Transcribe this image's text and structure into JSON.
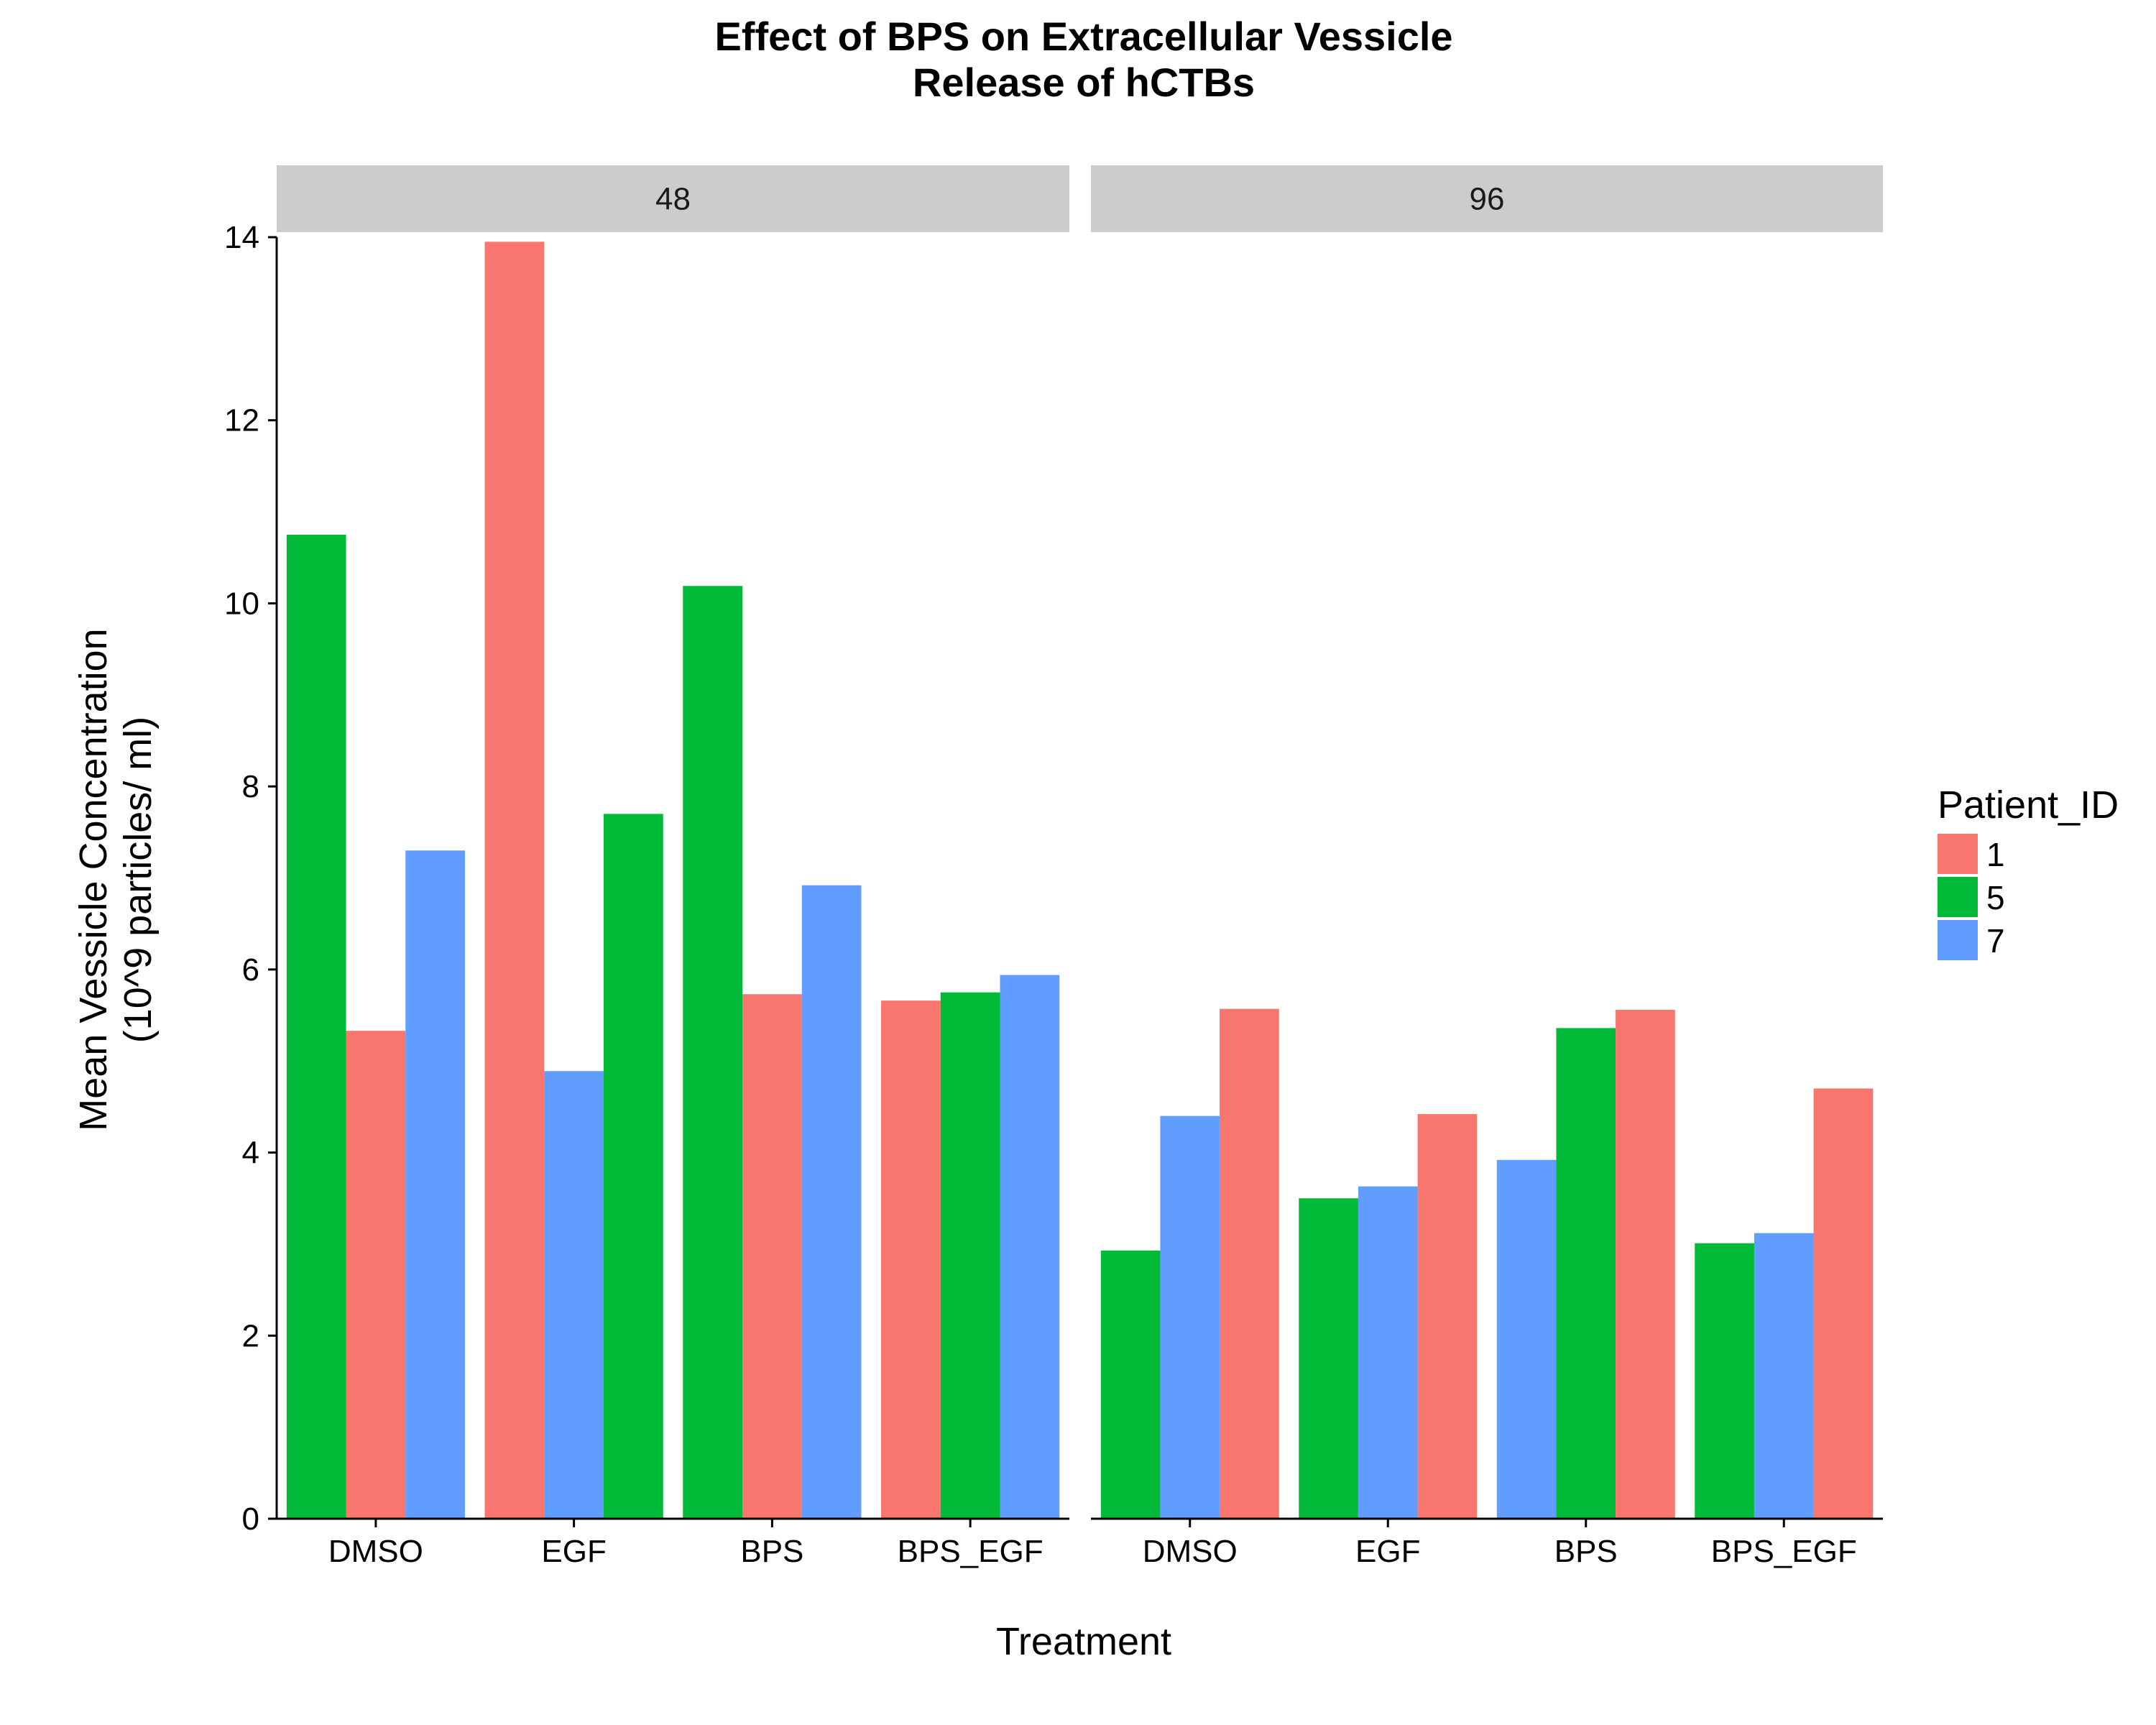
{
  "chart_data": {
    "type": "bar",
    "title_lines": [
      "Effect of BPS on Extracellular Vessicle",
      "Release of hCTBs"
    ],
    "xlabel": "Treatment",
    "ylabel_lines": [
      "Mean Vessicle Concentration",
      "(10^9 particles/ ml)"
    ],
    "ylim": [
      0,
      14
    ],
    "y_ticks": [
      "0",
      "2",
      "4",
      "6",
      "8",
      "10",
      "12",
      "14"
    ],
    "grid": false,
    "legend": {
      "title": "Patient_ID",
      "placement": "right",
      "entries": [
        {
          "label": "1",
          "color": "#F8766D"
        },
        {
          "label": "5",
          "color": "#00BA38"
        },
        {
          "label": "7",
          "color": "#619CFF"
        }
      ]
    },
    "panels": [
      {
        "strip": "48",
        "categories": [
          "DMSO",
          "EGF",
          "BPS",
          "BPS_EGF"
        ],
        "groups": [
          {
            "category": "DMSO",
            "bars": [
              {
                "patient": "5",
                "value": 10.75
              },
              {
                "patient": "1",
                "value": 5.33
              },
              {
                "patient": "7",
                "value": 7.3
              }
            ]
          },
          {
            "category": "EGF",
            "bars": [
              {
                "patient": "1",
                "value": 13.95
              },
              {
                "patient": "7",
                "value": 4.89
              },
              {
                "patient": "5",
                "value": 7.7
              }
            ]
          },
          {
            "category": "BPS",
            "bars": [
              {
                "patient": "5",
                "value": 10.19
              },
              {
                "patient": "1",
                "value": 5.73
              },
              {
                "patient": "7",
                "value": 6.92
              }
            ]
          },
          {
            "category": "BPS_EGF",
            "bars": [
              {
                "patient": "1",
                "value": 5.66
              },
              {
                "patient": "5",
                "value": 5.75
              },
              {
                "patient": "7",
                "value": 5.94
              }
            ]
          }
        ]
      },
      {
        "strip": "96",
        "categories": [
          "DMSO",
          "EGF",
          "BPS",
          "BPS_EGF"
        ],
        "groups": [
          {
            "category": "DMSO",
            "bars": [
              {
                "patient": "5",
                "value": 2.93
              },
              {
                "patient": "7",
                "value": 4.4
              },
              {
                "patient": "1",
                "value": 5.57
              }
            ]
          },
          {
            "category": "EGF",
            "bars": [
              {
                "patient": "5",
                "value": 3.5
              },
              {
                "patient": "7",
                "value": 3.63
              },
              {
                "patient": "1",
                "value": 4.42
              }
            ]
          },
          {
            "category": "BPS",
            "bars": [
              {
                "patient": "7",
                "value": 3.92
              },
              {
                "patient": "5",
                "value": 5.36
              },
              {
                "patient": "1",
                "value": 5.56
              }
            ]
          },
          {
            "category": "BPS_EGF",
            "bars": [
              {
                "patient": "5",
                "value": 3.01
              },
              {
                "patient": "7",
                "value": 3.12
              },
              {
                "patient": "1",
                "value": 4.7
              }
            ]
          }
        ]
      }
    ]
  }
}
